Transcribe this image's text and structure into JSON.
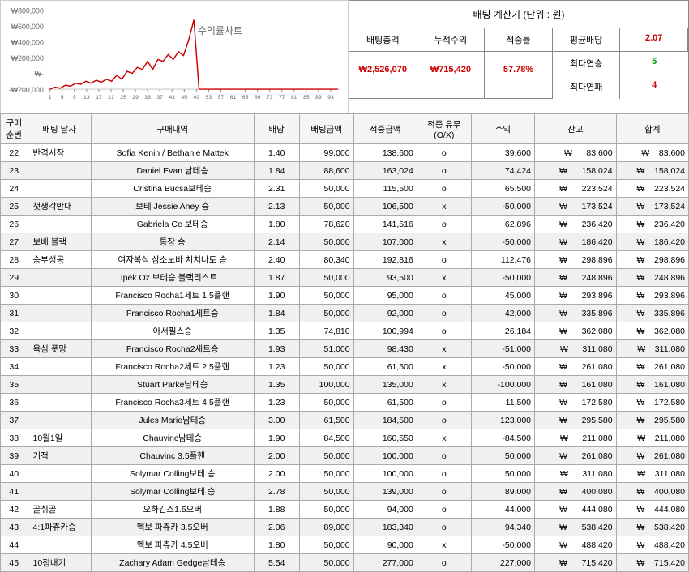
{
  "chart": {
    "title": "수익률차트",
    "ylabels": [
      "₩800,000",
      "₩600,000",
      "₩400,000",
      "₩200,000",
      "₩-",
      "-₩200,000"
    ],
    "xlabels": [
      "1",
      "5",
      "9",
      "13",
      "17",
      "21",
      "25",
      "29",
      "33",
      "37",
      "41",
      "45",
      "49",
      "53",
      "57",
      "61",
      "65",
      "69",
      "73",
      "77",
      "81",
      "85",
      "89",
      "93"
    ],
    "line_color": "#cc0000",
    "points": [
      0,
      20,
      10,
      40,
      30,
      60,
      50,
      80,
      60,
      90,
      70,
      100,
      80,
      140,
      100,
      180,
      160,
      220,
      200,
      280,
      200,
      300,
      280,
      350,
      300,
      380,
      340,
      500,
      700,
      0,
      0,
      0,
      0,
      0,
      0,
      0,
      0,
      0,
      0,
      0,
      0,
      0,
      0,
      0,
      0,
      0,
      0,
      0,
      0,
      0,
      0,
      0,
      0,
      0,
      0,
      0,
      0
    ]
  },
  "calc": {
    "title": "배팅 계산기 (단위 : 원)",
    "headers": [
      "배팅총액",
      "누적수익",
      "적중률",
      "평균배당"
    ],
    "values": [
      "₩2,526,070",
      "₩715,420",
      "57.78%"
    ],
    "avg_odds": "2.07",
    "streak_win_label": "최다연승",
    "streak_win": "5",
    "streak_lose_label": "최다연패",
    "streak_lose": "4"
  },
  "table": {
    "headers": [
      "구매\n순번",
      "배팅 날자",
      "구매내역",
      "배당",
      "배팅금액",
      "적중금액",
      "적중    유무\n(O/X)",
      "수익",
      "잔고",
      "합계"
    ],
    "rows": [
      {
        "seq": "22",
        "date": "반격시작",
        "item": "Sofia Kenin / Bethanie Mattek",
        "odds": "1.40",
        "bet": "99,000",
        "hit": "138,600",
        "ox": "o",
        "profit": "39,600",
        "bal": "83,600",
        "total": "83,600",
        "alt": false
      },
      {
        "seq": "23",
        "date": "",
        "item": "Daniel Evan 남테승",
        "odds": "1.84",
        "bet": "88,600",
        "hit": "163,024",
        "ox": "o",
        "profit": "74,424",
        "bal": "158,024",
        "total": "158,024",
        "alt": true
      },
      {
        "seq": "24",
        "date": "",
        "item": "Cristina Bucsa보테승",
        "odds": "2.31",
        "bet": "50,000",
        "hit": "115,500",
        "ox": "o",
        "profit": "65,500",
        "bal": "223,524",
        "total": "223,524",
        "alt": false
      },
      {
        "seq": "25",
        "date": "첫생각반대",
        "item": "보테 Jessie Aney 승",
        "odds": "2.13",
        "bet": "50,000",
        "hit": "106,500",
        "ox": "x",
        "profit": "-50,000",
        "bal": "173,524",
        "total": "173,524",
        "alt": true
      },
      {
        "seq": "26",
        "date": "",
        "item": "Gabriela Ce 보테승",
        "odds": "1.80",
        "bet": "78,620",
        "hit": "141,516",
        "ox": "o",
        "profit": "62,896",
        "bal": "236,420",
        "total": "236,420",
        "alt": false
      },
      {
        "seq": "27",
        "date": "보배 블랙",
        "item": "통장 승",
        "odds": "2.14",
        "bet": "50,000",
        "hit": "107,000",
        "ox": "x",
        "profit": "-50,000",
        "bal": "186,420",
        "total": "186,420",
        "alt": true
      },
      {
        "seq": "28",
        "date": "승부성공",
        "item": "여자복식 삼소노바 치치나토 승",
        "odds": "2.40",
        "bet": "80,340",
        "hit": "192,816",
        "ox": "o",
        "profit": "112,476",
        "bal": "298,896",
        "total": "298,896",
        "alt": false
      },
      {
        "seq": "29",
        "date": "",
        "item": "Ipek Oz 보테승 블랙리스트 ..",
        "odds": "1.87",
        "bet": "50,000",
        "hit": "93,500",
        "ox": "x",
        "profit": "-50,000",
        "bal": "248,896",
        "total": "248,896",
        "alt": true
      },
      {
        "seq": "30",
        "date": "",
        "item": "Francisco Rocha1세트 1.5플핸",
        "odds": "1.90",
        "bet": "50,000",
        "hit": "95,000",
        "ox": "o",
        "profit": "45,000",
        "bal": "293,896",
        "total": "293,896",
        "alt": false
      },
      {
        "seq": "31",
        "date": "",
        "item": "Francisco Rocha1세트승",
        "odds": "1.84",
        "bet": "50,000",
        "hit": "92,000",
        "ox": "o",
        "profit": "42,000",
        "bal": "335,896",
        "total": "335,896",
        "alt": true
      },
      {
        "seq": "32",
        "date": "",
        "item": "아서필스승",
        "odds": "1.35",
        "bet": "74,810",
        "hit": "100,994",
        "ox": "o",
        "profit": "26,184",
        "bal": "362,080",
        "total": "362,080",
        "alt": false
      },
      {
        "seq": "33",
        "date": "욕심 폿망",
        "item": "Francisco Rocha2세트승",
        "odds": "1.93",
        "bet": "51,000",
        "hit": "98,430",
        "ox": "x",
        "profit": "-51,000",
        "bal": "311,080",
        "total": "311,080",
        "alt": true
      },
      {
        "seq": "34",
        "date": "",
        "item": "Francisco Rocha2세트 2.5플핸",
        "odds": "1.23",
        "bet": "50,000",
        "hit": "61,500",
        "ox": "x",
        "profit": "-50,000",
        "bal": "261,080",
        "total": "261,080",
        "alt": false
      },
      {
        "seq": "35",
        "date": "",
        "item": "Stuart Parke남테승",
        "odds": "1.35",
        "bet": "100,000",
        "hit": "135,000",
        "ox": "x",
        "profit": "-100,000",
        "bal": "161,080",
        "total": "161,080",
        "alt": true
      },
      {
        "seq": "36",
        "date": "",
        "item": "Francisco Rocha3세트 4.5플핸",
        "odds": "1.23",
        "bet": "50,000",
        "hit": "61,500",
        "ox": "o",
        "profit": "11,500",
        "bal": "172,580",
        "total": "172,580",
        "alt": false
      },
      {
        "seq": "37",
        "date": "",
        "item": "Jules Marie남테승",
        "odds": "3.00",
        "bet": "61,500",
        "hit": "184,500",
        "ox": "o",
        "profit": "123,000",
        "bal": "295,580",
        "total": "295,580",
        "alt": true
      },
      {
        "seq": "38",
        "date": "10월1일",
        "item": "Chauvinc남테승",
        "odds": "1.90",
        "bet": "84,500",
        "hit": "160,550",
        "ox": "x",
        "profit": "-84,500",
        "bal": "211,080",
        "total": "211,080",
        "alt": false
      },
      {
        "seq": "39",
        "date": "기적",
        "item": "Chauvinc 3.5플핸",
        "odds": "2.00",
        "bet": "50,000",
        "hit": "100,000",
        "ox": "o",
        "profit": "50,000",
        "bal": "261,080",
        "total": "261,080",
        "alt": true
      },
      {
        "seq": "40",
        "date": "",
        "item": "Solymar Colling보테 승",
        "odds": "2.00",
        "bet": "50,000",
        "hit": "100,000",
        "ox": "o",
        "profit": "50,000",
        "bal": "311,080",
        "total": "311,080",
        "alt": false
      },
      {
        "seq": "41",
        "date": "",
        "item": "Solymar Colling보테 승",
        "odds": "2.78",
        "bet": "50,000",
        "hit": "139,000",
        "ox": "o",
        "profit": "89,000",
        "bal": "400,080",
        "total": "400,080",
        "alt": true
      },
      {
        "seq": "42",
        "date": "골취골",
        "item": "오하긴스1.5오버",
        "odds": "1.88",
        "bet": "50,000",
        "hit": "94,000",
        "ox": "o",
        "profit": "44,000",
        "bal": "444,080",
        "total": "444,080",
        "alt": false
      },
      {
        "seq": "43",
        "date": "4:1파츄카승",
        "item": "멕보 파츄카 3.5오버",
        "odds": "2.06",
        "bet": "89,000",
        "hit": "183,340",
        "ox": "o",
        "profit": "94,340",
        "bal": "538,420",
        "total": "538,420",
        "alt": true
      },
      {
        "seq": "44",
        "date": "",
        "item": "멕보 파츄카 4.5오버",
        "odds": "1.80",
        "bet": "50,000",
        "hit": "90,000",
        "ox": "x",
        "profit": "-50,000",
        "bal": "488,420",
        "total": "488,420",
        "alt": false
      },
      {
        "seq": "45",
        "date": "10점내기",
        "item": "Zachary Adam Gedge남테승",
        "odds": "5.54",
        "bet": "50,000",
        "hit": "277,000",
        "ox": "o",
        "profit": "227,000",
        "bal": "715,420",
        "total": "715,420",
        "alt": true
      }
    ]
  }
}
